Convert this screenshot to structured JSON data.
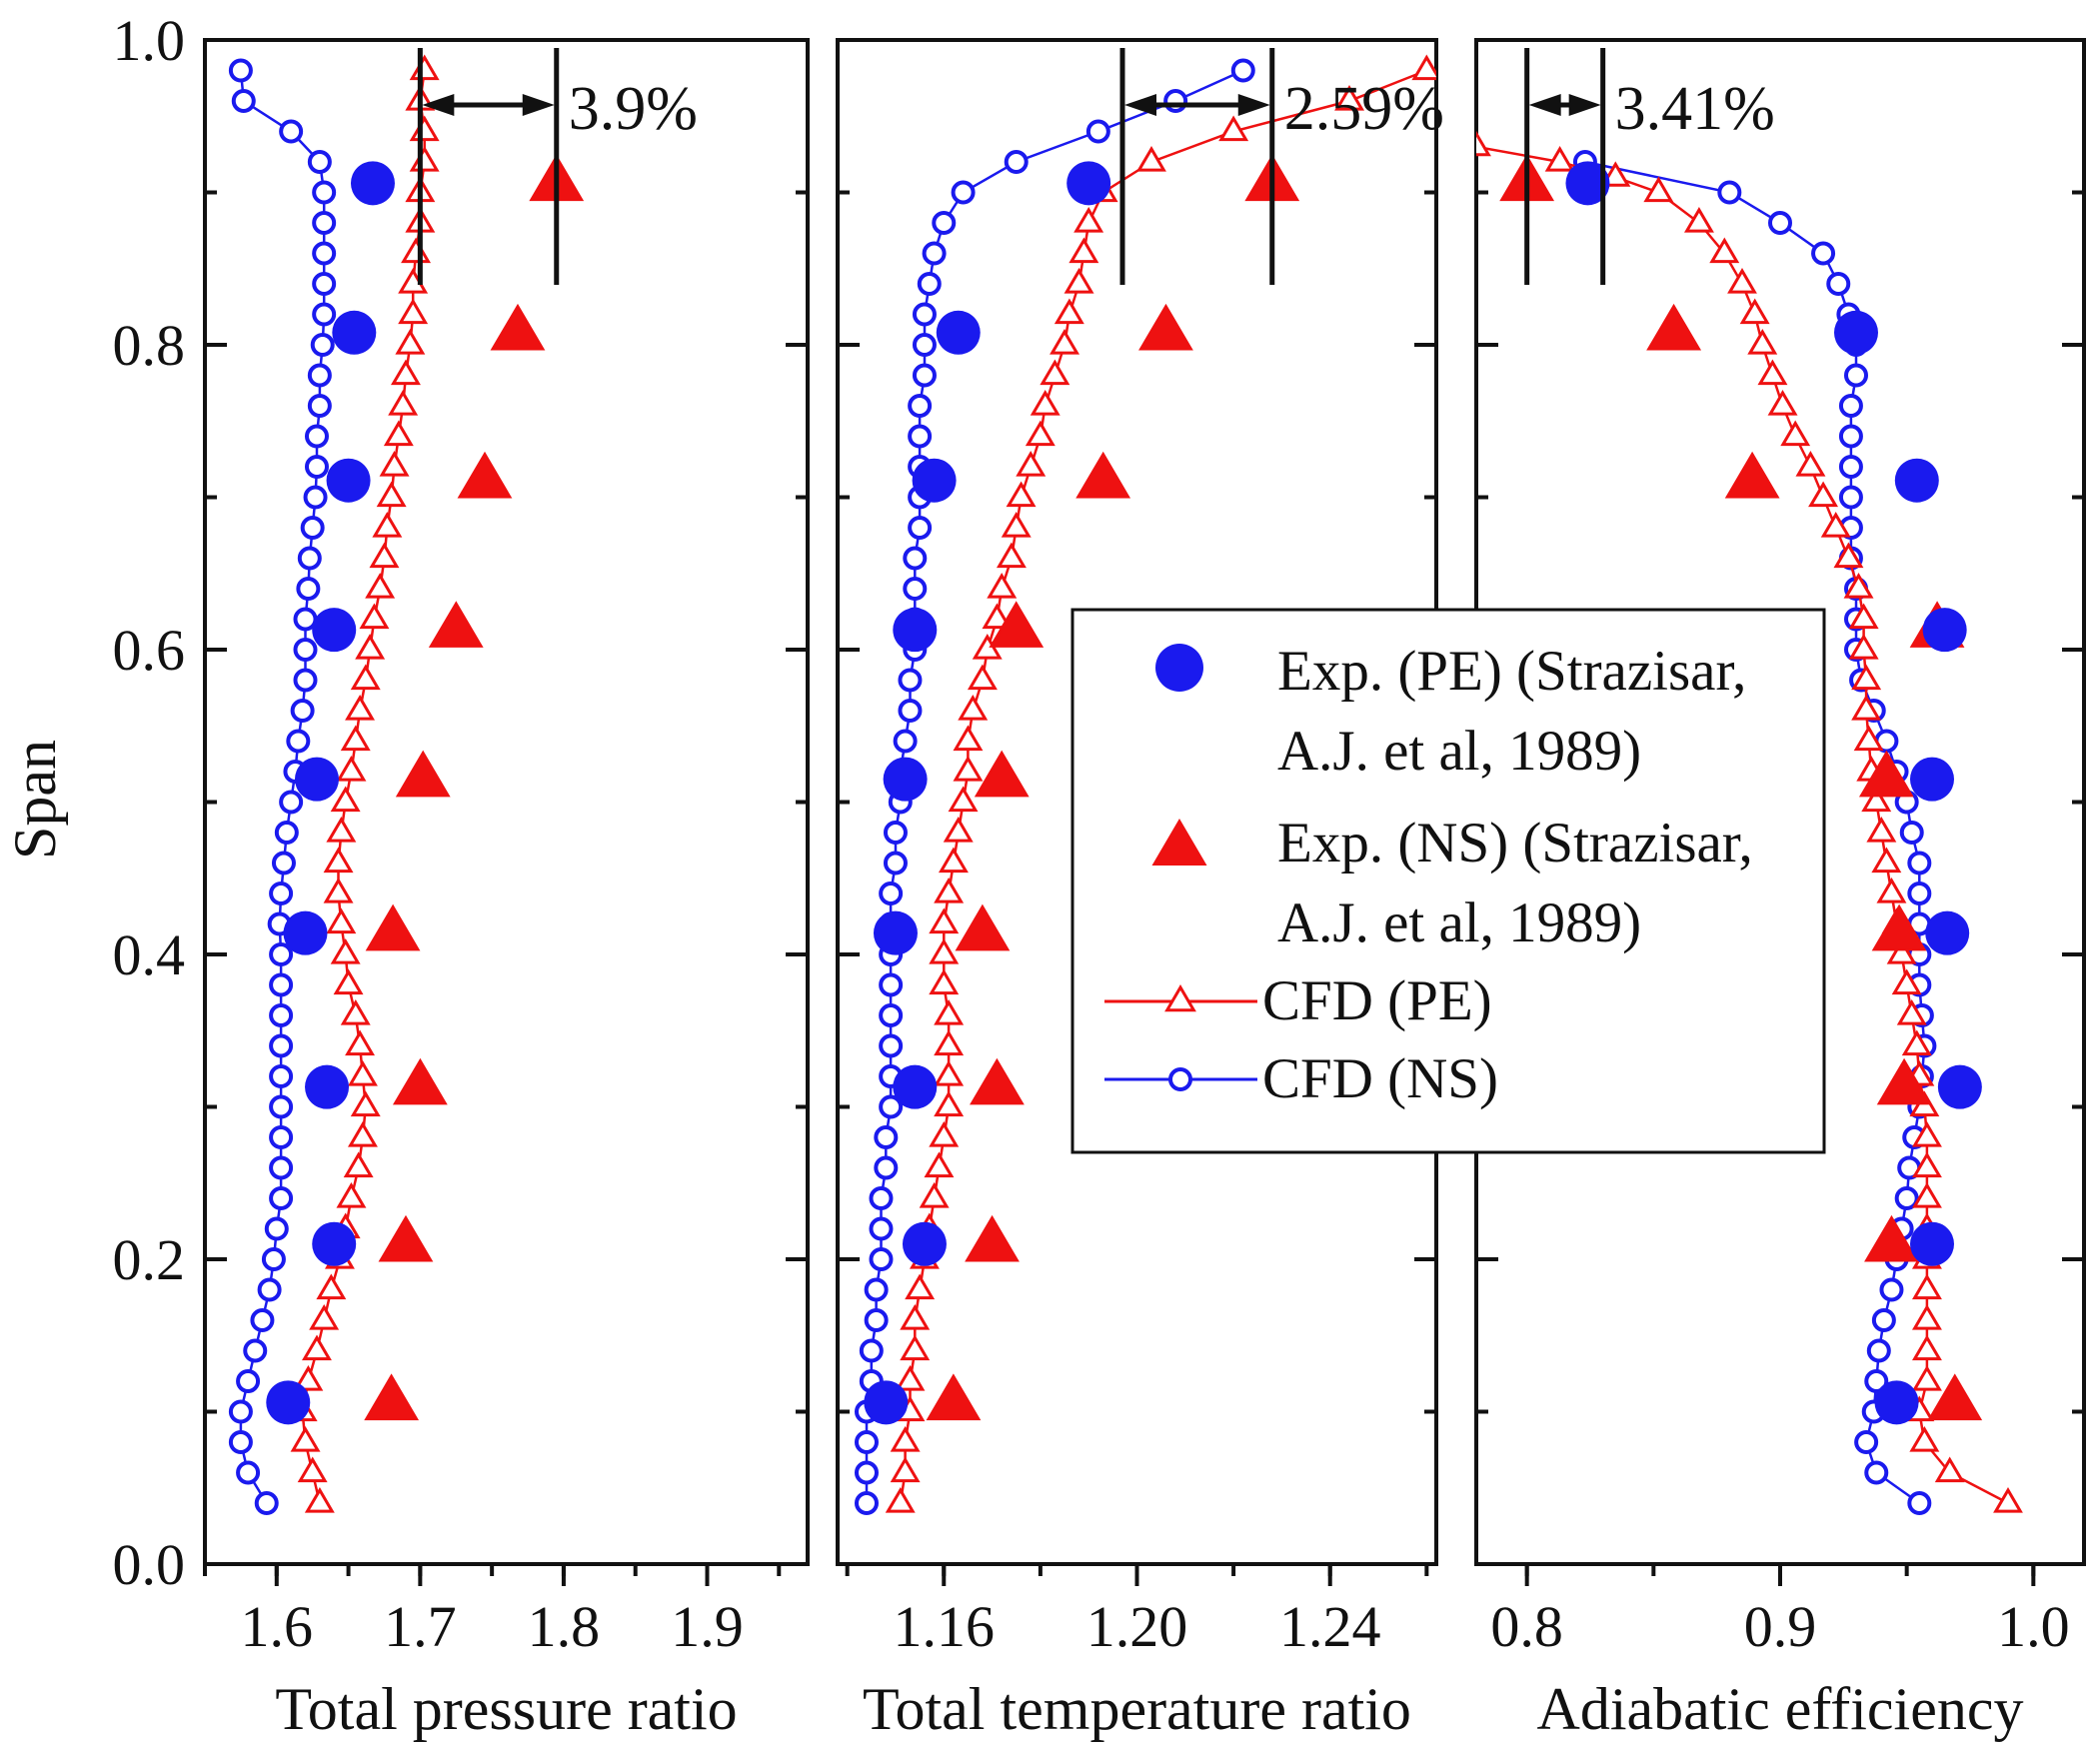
{
  "chart_data": {
    "type": "line",
    "y_axis": {
      "label": "Span",
      "range": [
        0,
        1
      ],
      "ticks": [
        "0.0",
        "0.2",
        "0.4",
        "0.6",
        "0.8",
        "1.0"
      ]
    },
    "panels": [
      {
        "id": "pressure",
        "xlabel": "Total pressure ratio",
        "xlim": [
          1.55,
          1.97
        ],
        "ticks": [
          1.6,
          1.7,
          1.8,
          1.9
        ],
        "tick_labels": [
          "1.6",
          "1.7",
          "1.8",
          "1.9"
        ],
        "annotation": {
          "text": "3.9%",
          "x1": 1.7,
          "x2": 1.795
        },
        "exp_pe": {
          "span": [
            0.906,
            0.808,
            0.711,
            0.613,
            0.515,
            0.414,
            0.313,
            0.21,
            0.106
          ],
          "value": [
            1.667,
            1.654,
            1.65,
            1.64,
            1.628,
            1.62,
            1.635,
            1.64,
            1.608
          ]
        },
        "exp_ns": {
          "span": [
            0.906,
            0.808,
            0.711,
            0.613,
            0.515,
            0.414,
            0.313,
            0.21,
            0.106
          ],
          "value": [
            1.795,
            1.768,
            1.745,
            1.725,
            1.702,
            1.681,
            1.7,
            1.69,
            1.68
          ]
        },
        "cfd_pe": {
          "span": [
            0.98,
            0.96,
            0.94,
            0.92,
            0.9,
            0.88,
            0.86,
            0.84,
            0.82,
            0.8,
            0.78,
            0.76,
            0.74,
            0.72,
            0.7,
            0.68,
            0.66,
            0.64,
            0.62,
            0.6,
            0.58,
            0.56,
            0.54,
            0.52,
            0.5,
            0.48,
            0.46,
            0.44,
            0.42,
            0.4,
            0.38,
            0.36,
            0.34,
            0.32,
            0.3,
            0.28,
            0.26,
            0.24,
            0.22,
            0.2,
            0.18,
            0.16,
            0.14,
            0.12,
            0.1,
            0.08,
            0.06,
            0.04
          ],
          "value": [
            1.703,
            1.7,
            1.703,
            1.703,
            1.7,
            1.7,
            1.697,
            1.695,
            1.695,
            1.693,
            1.69,
            1.688,
            1.685,
            1.682,
            1.68,
            1.677,
            1.675,
            1.672,
            1.668,
            1.665,
            1.662,
            1.658,
            1.655,
            1.652,
            1.648,
            1.645,
            1.643,
            1.643,
            1.645,
            1.648,
            1.65,
            1.655,
            1.658,
            1.66,
            1.662,
            1.66,
            1.657,
            1.652,
            1.648,
            1.644,
            1.638,
            1.633,
            1.628,
            1.622,
            1.618,
            1.62,
            1.625,
            1.63
          ]
        },
        "cfd_ns": {
          "span": [
            0.98,
            0.96,
            0.94,
            0.92,
            0.9,
            0.88,
            0.86,
            0.84,
            0.82,
            0.8,
            0.78,
            0.76,
            0.74,
            0.72,
            0.7,
            0.68,
            0.66,
            0.64,
            0.62,
            0.6,
            0.58,
            0.56,
            0.54,
            0.52,
            0.5,
            0.48,
            0.46,
            0.44,
            0.42,
            0.4,
            0.38,
            0.36,
            0.34,
            0.32,
            0.3,
            0.28,
            0.26,
            0.24,
            0.22,
            0.2,
            0.18,
            0.16,
            0.14,
            0.12,
            0.1,
            0.08,
            0.06,
            0.04
          ],
          "value": [
            1.575,
            1.577,
            1.61,
            1.63,
            1.633,
            1.633,
            1.633,
            1.633,
            1.633,
            1.632,
            1.63,
            1.63,
            1.628,
            1.628,
            1.627,
            1.625,
            1.623,
            1.622,
            1.62,
            1.62,
            1.62,
            1.618,
            1.615,
            1.613,
            1.61,
            1.607,
            1.605,
            1.603,
            1.602,
            1.603,
            1.603,
            1.603,
            1.603,
            1.603,
            1.603,
            1.603,
            1.603,
            1.603,
            1.6,
            1.598,
            1.595,
            1.59,
            1.585,
            1.58,
            1.575,
            1.575,
            1.58,
            1.593
          ]
        }
      },
      {
        "id": "temperature",
        "xlabel": "Total temperature ratio",
        "xlim": [
          1.138,
          1.262
        ],
        "ticks": [
          1.16,
          1.2,
          1.24
        ],
        "tick_labels": [
          "1.16",
          "1.20",
          "1.24"
        ],
        "annotation": {
          "text": "2.59%",
          "x1": 1.197,
          "x2": 1.228
        },
        "exp_pe": {
          "span": [
            0.906,
            0.808,
            0.711,
            0.613,
            0.515,
            0.414,
            0.313,
            0.21,
            0.106
          ],
          "value": [
            1.19,
            1.163,
            1.158,
            1.154,
            1.152,
            1.15,
            1.154,
            1.156,
            1.148
          ]
        },
        "exp_ns": {
          "span": [
            0.906,
            0.808,
            0.711,
            0.613,
            0.515,
            0.414,
            0.313,
            0.21,
            0.106
          ],
          "value": [
            1.228,
            1.206,
            1.193,
            1.175,
            1.172,
            1.168,
            1.171,
            1.17,
            1.162
          ]
        },
        "cfd_pe": {
          "span": [
            0.98,
            0.96,
            0.94,
            0.92,
            0.9,
            0.88,
            0.86,
            0.84,
            0.82,
            0.8,
            0.78,
            0.76,
            0.74,
            0.72,
            0.7,
            0.68,
            0.66,
            0.64,
            0.62,
            0.6,
            0.58,
            0.56,
            0.54,
            0.52,
            0.5,
            0.48,
            0.46,
            0.44,
            0.42,
            0.4,
            0.38,
            0.36,
            0.34,
            0.32,
            0.3,
            0.28,
            0.26,
            0.24,
            0.22,
            0.2,
            0.18,
            0.16,
            0.14,
            0.12,
            0.1,
            0.08,
            0.06,
            0.04
          ],
          "value": [
            1.26,
            1.244,
            1.22,
            1.203,
            1.193,
            1.19,
            1.189,
            1.188,
            1.186,
            1.185,
            1.183,
            1.181,
            1.18,
            1.178,
            1.176,
            1.175,
            1.174,
            1.172,
            1.171,
            1.169,
            1.168,
            1.166,
            1.165,
            1.165,
            1.164,
            1.163,
            1.162,
            1.161,
            1.16,
            1.16,
            1.16,
            1.161,
            1.161,
            1.161,
            1.161,
            1.16,
            1.159,
            1.158,
            1.157,
            1.156,
            1.155,
            1.154,
            1.154,
            1.153,
            1.153,
            1.152,
            1.152,
            1.151
          ]
        },
        "cfd_ns": {
          "span": [
            0.98,
            0.96,
            0.94,
            0.92,
            0.9,
            0.88,
            0.86,
            0.84,
            0.82,
            0.8,
            0.78,
            0.76,
            0.74,
            0.72,
            0.7,
            0.68,
            0.66,
            0.64,
            0.62,
            0.6,
            0.58,
            0.56,
            0.54,
            0.52,
            0.5,
            0.48,
            0.46,
            0.44,
            0.42,
            0.4,
            0.38,
            0.36,
            0.34,
            0.32,
            0.3,
            0.28,
            0.26,
            0.24,
            0.22,
            0.2,
            0.18,
            0.16,
            0.14,
            0.12,
            0.1,
            0.08,
            0.06,
            0.04
          ],
          "value": [
            1.222,
            1.208,
            1.192,
            1.175,
            1.164,
            1.16,
            1.158,
            1.157,
            1.156,
            1.156,
            1.156,
            1.155,
            1.155,
            1.155,
            1.155,
            1.155,
            1.154,
            1.154,
            1.154,
            1.154,
            1.153,
            1.153,
            1.152,
            1.151,
            1.151,
            1.15,
            1.15,
            1.149,
            1.149,
            1.149,
            1.149,
            1.149,
            1.149,
            1.149,
            1.149,
            1.148,
            1.148,
            1.147,
            1.147,
            1.147,
            1.146,
            1.146,
            1.145,
            1.145,
            1.144,
            1.144,
            1.144,
            1.144
          ]
        }
      },
      {
        "id": "efficiency",
        "xlabel": "Adiabatic efficiency",
        "xlim": [
          0.78,
          1.02
        ],
        "ticks": [
          0.8,
          0.9,
          1.0
        ],
        "tick_labels": [
          "0.8",
          "0.9",
          "1.0"
        ],
        "annotation": {
          "text": "3.41%",
          "x1": 0.8,
          "x2": 0.83
        },
        "exp_pe": {
          "span": [
            0.906,
            0.808,
            0.711,
            0.613,
            0.515,
            0.414,
            0.313,
            0.21,
            0.106
          ],
          "value": [
            0.824,
            0.93,
            0.954,
            0.965,
            0.96,
            0.966,
            0.971,
            0.96,
            0.946
          ]
        },
        "exp_ns": {
          "span": [
            0.906,
            0.808,
            0.711,
            0.613,
            0.515,
            0.414,
            0.313,
            0.21,
            0.106
          ],
          "value": [
            0.8,
            0.858,
            0.889,
            0.962,
            0.942,
            0.947,
            0.949,
            0.944,
            0.969
          ]
        },
        "cfd_pe": {
          "span": [
            0.93,
            0.92,
            0.91,
            0.9,
            0.88,
            0.86,
            0.84,
            0.82,
            0.8,
            0.78,
            0.76,
            0.74,
            0.72,
            0.7,
            0.68,
            0.66,
            0.64,
            0.62,
            0.6,
            0.58,
            0.56,
            0.54,
            0.52,
            0.5,
            0.48,
            0.46,
            0.44,
            0.42,
            0.4,
            0.38,
            0.36,
            0.34,
            0.32,
            0.3,
            0.28,
            0.26,
            0.24,
            0.22,
            0.2,
            0.18,
            0.16,
            0.14,
            0.12,
            0.1,
            0.08,
            0.06,
            0.04
          ],
          "value": [
            0.78,
            0.813,
            0.835,
            0.852,
            0.868,
            0.878,
            0.885,
            0.89,
            0.893,
            0.897,
            0.901,
            0.906,
            0.912,
            0.917,
            0.922,
            0.927,
            0.931,
            0.933,
            0.933,
            0.934,
            0.934,
            0.935,
            0.936,
            0.938,
            0.94,
            0.942,
            0.944,
            0.946,
            0.948,
            0.95,
            0.952,
            0.954,
            0.955,
            0.957,
            0.958,
            0.958,
            0.958,
            0.958,
            0.958,
            0.958,
            0.958,
            0.958,
            0.958,
            0.955,
            0.957,
            0.967,
            0.99
          ]
        },
        "cfd_ns": {
          "span": [
            0.92,
            0.9,
            0.88,
            0.86,
            0.84,
            0.82,
            0.8,
            0.78,
            0.76,
            0.74,
            0.72,
            0.7,
            0.68,
            0.66,
            0.64,
            0.62,
            0.6,
            0.58,
            0.56,
            0.54,
            0.52,
            0.5,
            0.48,
            0.46,
            0.44,
            0.42,
            0.4,
            0.38,
            0.36,
            0.34,
            0.32,
            0.3,
            0.28,
            0.26,
            0.24,
            0.22,
            0.2,
            0.18,
            0.16,
            0.14,
            0.12,
            0.1,
            0.08,
            0.06,
            0.04
          ],
          "value": [
            0.823,
            0.88,
            0.9,
            0.917,
            0.923,
            0.927,
            0.93,
            0.93,
            0.928,
            0.928,
            0.928,
            0.928,
            0.928,
            0.928,
            0.93,
            0.93,
            0.93,
            0.932,
            0.937,
            0.942,
            0.946,
            0.95,
            0.952,
            0.955,
            0.955,
            0.955,
            0.955,
            0.955,
            0.956,
            0.957,
            0.956,
            0.955,
            0.953,
            0.951,
            0.95,
            0.948,
            0.946,
            0.944,
            0.941,
            0.939,
            0.938,
            0.937,
            0.934,
            0.938,
            0.955
          ]
        }
      }
    ],
    "legend": {
      "position": "center",
      "entries": [
        {
          "key": "exp_pe",
          "lines": [
            "Exp. (PE) (Strazisar,",
            "A.J. et al, 1989)"
          ],
          "color": "#1a1aee",
          "marker": "filled-circle"
        },
        {
          "key": "exp_ns",
          "lines": [
            "Exp. (NS) (Strazisar,",
            "A.J. et al, 1989)"
          ],
          "color": "#ee1111",
          "marker": "filled-triangle"
        },
        {
          "key": "cfd_pe",
          "lines": [
            "CFD (PE)"
          ],
          "color": "#ee1111",
          "marker": "open-triangle-line"
        },
        {
          "key": "cfd_ns",
          "lines": [
            "CFD (NS)"
          ],
          "color": "#1a1aee",
          "marker": "open-circle-line"
        }
      ]
    }
  }
}
